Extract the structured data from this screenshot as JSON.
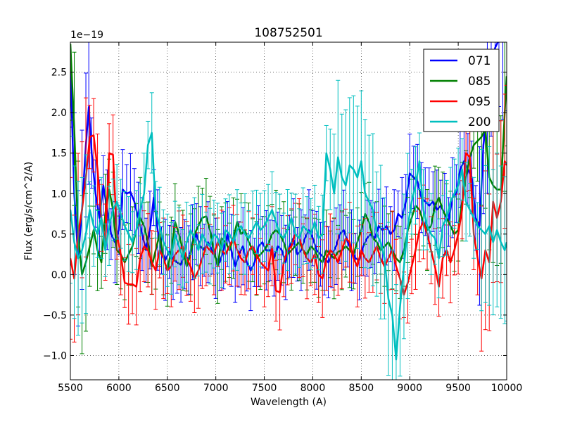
{
  "chart_data": {
    "type": "line",
    "title": "108752501",
    "xlabel": "Wavelength (A)",
    "ylabel": "Flux (erg/s/cm^2/A)",
    "y_offset_label": "1e−19",
    "xlim": [
      5500,
      10000
    ],
    "ylim": [
      -1.3,
      2.87
    ],
    "x_ticks": [
      5500,
      6000,
      6500,
      7000,
      7500,
      8000,
      8500,
      9000,
      9500,
      10000
    ],
    "x_tick_labels": [
      "5500",
      "6000",
      "6500",
      "7000",
      "7500",
      "8000",
      "8500",
      "9000",
      "9500",
      "10000"
    ],
    "y_ticks": [
      -1.0,
      -0.5,
      0.0,
      0.5,
      1.0,
      1.5,
      2.0,
      2.5
    ],
    "y_tick_labels": [
      "−1.0",
      "−0.5",
      "0.0",
      "0.5",
      "1.0",
      "1.5",
      "2.0",
      "2.5"
    ],
    "grid": true,
    "legend_position": "top-right",
    "series": [
      {
        "name": "071",
        "color": "#0000ff",
        "x": [
          5500,
          5540,
          5580,
          5620,
          5660,
          5690,
          5720,
          5760,
          5800,
          5840,
          5880,
          5920,
          5960,
          6000,
          6040,
          6080,
          6120,
          6160,
          6200,
          6240,
          6280,
          6320,
          6360,
          6400,
          6440,
          6480,
          6520,
          6560,
          6600,
          6640,
          6680,
          6720,
          6760,
          6800,
          6840,
          6880,
          6920,
          6960,
          7000,
          7040,
          7080,
          7120,
          7160,
          7200,
          7240,
          7280,
          7320,
          7360,
          7400,
          7440,
          7480,
          7520,
          7560,
          7600,
          7640,
          7680,
          7720,
          7760,
          7800,
          7840,
          7880,
          7920,
          7960,
          8000,
          8040,
          8080,
          8120,
          8160,
          8200,
          8240,
          8280,
          8320,
          8360,
          8400,
          8440,
          8480,
          8520,
          8560,
          8600,
          8640,
          8680,
          8720,
          8760,
          8800,
          8840,
          8880,
          8920,
          8960,
          9000,
          9040,
          9080,
          9120,
          9160,
          9200,
          9240,
          9280,
          9320,
          9360,
          9400,
          9440,
          9480,
          9520,
          9560,
          9600,
          9640,
          9680,
          9720,
          9760,
          9800,
          9840,
          9880,
          9920,
          9960,
          10000
        ],
        "y": [
          2.6,
          1.0,
          0.2,
          0.8,
          1.6,
          2.07,
          1.5,
          1.0,
          0.7,
          1.1,
          0.8,
          0.5,
          0.4,
          0.55,
          1.05,
          1.0,
          1.02,
          0.9,
          0.7,
          0.5,
          0.3,
          0.55,
          0.95,
          0.55,
          0.3,
          0.18,
          0.28,
          0.18,
          0.15,
          0.12,
          0.25,
          0.18,
          0.4,
          0.5,
          0.35,
          0.3,
          0.4,
          0.3,
          0.2,
          0.15,
          0.3,
          0.5,
          0.3,
          0.1,
          0.25,
          0.35,
          0.15,
          0.05,
          0.15,
          0.35,
          0.4,
          0.3,
          0.3,
          0.2,
          0.35,
          0.3,
          0.15,
          0.35,
          0.45,
          0.25,
          0.3,
          0.45,
          0.55,
          0.45,
          0.3,
          0.25,
          0.2,
          0.15,
          0.25,
          0.35,
          0.5,
          0.55,
          0.4,
          0.3,
          0.2,
          0.18,
          0.35,
          0.45,
          0.5,
          0.45,
          0.6,
          0.55,
          0.6,
          0.5,
          0.55,
          0.75,
          0.7,
          0.9,
          1.25,
          1.2,
          1.15,
          0.95,
          0.9,
          0.85,
          0.9,
          0.8,
          0.85,
          0.75,
          0.65,
          0.95,
          1.0,
          1.3,
          1.4,
          1.3,
          1.2,
          0.7,
          0.6,
          1.6,
          2.0,
          2.5,
          2.8,
          2.9,
          2.9,
          2.9
        ]
      },
      {
        "name": "085",
        "color": "#008000",
        "x": [
          5500,
          5540,
          5580,
          5620,
          5660,
          5700,
          5740,
          5780,
          5820,
          5860,
          5900,
          5940,
          5980,
          6020,
          6060,
          6100,
          6140,
          6180,
          6220,
          6260,
          6300,
          6340,
          6380,
          6420,
          6460,
          6500,
          6540,
          6580,
          6620,
          6660,
          6700,
          6740,
          6780,
          6820,
          6860,
          6900,
          6940,
          6980,
          7020,
          7060,
          7100,
          7140,
          7180,
          7220,
          7260,
          7300,
          7340,
          7380,
          7420,
          7460,
          7500,
          7540,
          7580,
          7620,
          7660,
          7700,
          7740,
          7780,
          7820,
          7860,
          7900,
          7940,
          7980,
          8020,
          8060,
          8100,
          8140,
          8180,
          8220,
          8260,
          8300,
          8340,
          8380,
          8420,
          8460,
          8500,
          8540,
          8580,
          8620,
          8660,
          8700,
          8740,
          8780,
          8820,
          8860,
          8900,
          8940,
          8980,
          9020,
          9060,
          9100,
          9140,
          9180,
          9220,
          9260,
          9300,
          9340,
          9380,
          9420,
          9460,
          9500,
          9540,
          9580,
          9620,
          9660,
          9700,
          9740,
          9780,
          9820,
          9860,
          9900,
          9940,
          9980,
          10000
        ],
        "y": [
          2.85,
          1.8,
          0.5,
          0.0,
          0.15,
          0.35,
          0.55,
          0.3,
          0.15,
          0.75,
          1.05,
          0.8,
          0.3,
          0.25,
          0.15,
          0.25,
          0.35,
          0.55,
          0.7,
          0.6,
          0.4,
          0.1,
          0.3,
          0.5,
          0.2,
          0.05,
          0.3,
          0.65,
          0.5,
          0.3,
          0.1,
          0.25,
          0.5,
          0.6,
          0.7,
          0.72,
          0.55,
          0.3,
          0.1,
          0.45,
          0.4,
          0.3,
          0.45,
          0.65,
          0.5,
          0.55,
          0.4,
          0.3,
          0.2,
          0.25,
          0.3,
          0.38,
          0.5,
          0.55,
          0.5,
          0.4,
          0.25,
          0.3,
          0.35,
          0.4,
          0.3,
          0.25,
          0.35,
          0.3,
          0.2,
          0.15,
          0.3,
          0.25,
          0.2,
          0.28,
          0.3,
          0.35,
          0.3,
          0.25,
          0.4,
          0.55,
          0.75,
          0.65,
          0.45,
          0.4,
          0.3,
          0.35,
          0.4,
          0.3,
          0.2,
          0.15,
          0.3,
          0.55,
          0.7,
          0.85,
          0.8,
          0.65,
          0.55,
          0.6,
          0.85,
          0.95,
          0.8,
          0.7,
          0.6,
          0.5,
          0.55,
          0.9,
          1.2,
          1.45,
          1.6,
          1.65,
          1.7,
          1.8,
          1.2,
          1.1,
          1.05,
          1.05,
          2.0,
          2.45
        ]
      },
      {
        "name": "095",
        "color": "#ff0000",
        "x": [
          5500,
          5540,
          5580,
          5620,
          5660,
          5700,
          5740,
          5780,
          5820,
          5860,
          5900,
          5940,
          5980,
          6020,
          6060,
          6100,
          6140,
          6180,
          6220,
          6260,
          6300,
          6340,
          6380,
          6420,
          6460,
          6500,
          6540,
          6580,
          6620,
          6660,
          6700,
          6740,
          6780,
          6820,
          6860,
          6900,
          6940,
          6980,
          7020,
          7060,
          7100,
          7140,
          7180,
          7220,
          7260,
          7300,
          7340,
          7380,
          7420,
          7460,
          7500,
          7540,
          7580,
          7620,
          7660,
          7700,
          7740,
          7780,
          7820,
          7860,
          7900,
          7940,
          7980,
          8020,
          8060,
          8100,
          8140,
          8180,
          8220,
          8260,
          8300,
          8340,
          8380,
          8420,
          8460,
          8500,
          8540,
          8580,
          8620,
          8660,
          8700,
          8740,
          8780,
          8820,
          8860,
          8900,
          8940,
          8980,
          9020,
          9060,
          9100,
          9140,
          9180,
          9220,
          9260,
          9300,
          9340,
          9380,
          9420,
          9460,
          9500,
          9540,
          9580,
          9620,
          9660,
          9700,
          9740,
          9780,
          9820,
          9860,
          9900,
          9940,
          9980,
          10000
        ],
        "y": [
          0.2,
          -0.05,
          0.5,
          0.8,
          1.2,
          1.7,
          1.72,
          1.3,
          0.7,
          0.4,
          1.5,
          1.48,
          0.5,
          0.25,
          -0.1,
          -0.12,
          -0.12,
          -0.15,
          0.2,
          0.35,
          0.3,
          0.15,
          0.05,
          0.3,
          0.2,
          0.05,
          0.1,
          0.25,
          0.3,
          0.35,
          0.2,
          0.1,
          -0.05,
          0.05,
          0.2,
          0.35,
          0.3,
          0.25,
          0.4,
          0.3,
          0.25,
          0.35,
          0.45,
          0.3,
          0.2,
          0.15,
          0.3,
          0.35,
          0.25,
          0.15,
          0.1,
          0.05,
          0.35,
          -0.2,
          -0.22,
          0.15,
          0.3,
          0.35,
          0.5,
          0.45,
          0.3,
          0.2,
          0.15,
          0.25,
          0.0,
          -0.05,
          0.2,
          0.3,
          0.25,
          0.15,
          0.3,
          0.45,
          0.4,
          0.2,
          0.1,
          0.3,
          0.2,
          0.15,
          0.25,
          0.35,
          0.2,
          0.1,
          0.2,
          0.3,
          0.1,
          -0.05,
          -0.25,
          -0.1,
          0.1,
          0.3,
          0.55,
          0.65,
          0.5,
          0.3,
          0.1,
          -0.15,
          0.2,
          0.3,
          0.15,
          0.3,
          0.5,
          0.8,
          1.5,
          1.45,
          0.5,
          0.2,
          -0.05,
          0.3,
          0.15,
          0.9,
          0.7,
          0.9,
          1.4,
          1.35
        ]
      },
      {
        "name": "200",
        "color": "#00bfbf",
        "x": [
          5500,
          5540,
          5580,
          5620,
          5660,
          5700,
          5740,
          5780,
          5820,
          5860,
          5900,
          5940,
          5980,
          6020,
          6060,
          6100,
          6140,
          6180,
          6220,
          6260,
          6300,
          6340,
          6380,
          6420,
          6460,
          6500,
          6540,
          6580,
          6620,
          6660,
          6700,
          6740,
          6780,
          6820,
          6860,
          6900,
          6940,
          6980,
          7020,
          7060,
          7100,
          7140,
          7180,
          7220,
          7260,
          7300,
          7340,
          7380,
          7420,
          7460,
          7500,
          7540,
          7580,
          7620,
          7660,
          7700,
          7740,
          7780,
          7820,
          7860,
          7900,
          7940,
          7980,
          8020,
          8060,
          8100,
          8140,
          8180,
          8220,
          8260,
          8300,
          8340,
          8380,
          8420,
          8460,
          8500,
          8540,
          8580,
          8620,
          8660,
          8700,
          8740,
          8780,
          8820,
          8860,
          8900,
          8940,
          8980,
          9020,
          9060,
          9100,
          9140,
          9180,
          9220,
          9260,
          9300,
          9340,
          9380,
          9420,
          9460,
          9500,
          9540,
          9580,
          9620,
          9660,
          9700,
          9740,
          9780,
          9820,
          9860,
          9900,
          9940,
          9980,
          10000
        ],
        "y": [
          0.8,
          0.4,
          0.2,
          0.3,
          0.5,
          0.8,
          0.6,
          0.5,
          0.7,
          0.3,
          0.6,
          0.8,
          0.9,
          0.75,
          0.6,
          0.5,
          0.4,
          0.55,
          0.8,
          1.0,
          1.6,
          1.75,
          0.8,
          0.6,
          0.4,
          0.3,
          0.2,
          0.5,
          0.35,
          0.2,
          0.4,
          0.55,
          0.45,
          0.3,
          0.5,
          0.4,
          0.35,
          0.5,
          0.45,
          0.3,
          0.55,
          0.5,
          0.4,
          0.55,
          0.6,
          0.5,
          0.45,
          0.55,
          0.65,
          0.55,
          0.6,
          0.7,
          0.8,
          0.65,
          0.5,
          0.45,
          0.55,
          0.7,
          0.5,
          0.45,
          0.6,
          0.55,
          0.5,
          0.65,
          0.45,
          0.5,
          1.5,
          1.3,
          1.0,
          1.45,
          1.2,
          1.1,
          1.35,
          1.3,
          1.2,
          1.4,
          1.0,
          0.9,
          0.8,
          0.5,
          0.4,
          0.2,
          -0.3,
          -0.5,
          -1.05,
          -0.4,
          0.1,
          0.6,
          0.9,
          1.1,
          1.4,
          0.8,
          0.6,
          0.5,
          0.45,
          0.2,
          0.6,
          0.7,
          0.9,
          1.0,
          1.1,
          1.3,
          0.9,
          0.8,
          0.7,
          0.6,
          0.55,
          0.5,
          0.6,
          0.4,
          0.55,
          0.4,
          0.3,
          0.4
        ]
      }
    ]
  }
}
